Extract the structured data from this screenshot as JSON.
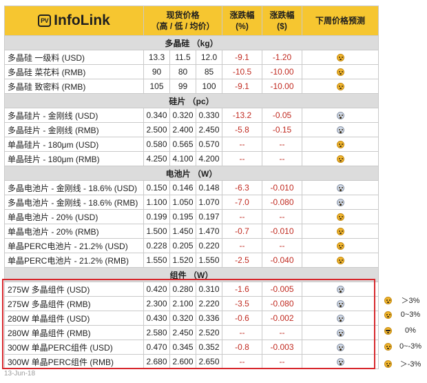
{
  "header": {
    "logo_badge": "PV",
    "logo_text": "InfoLink",
    "price_l1": "现货价格",
    "price_l2": "（高 / 低 / 均价）",
    "chg_pct_l1": "涨跌幅",
    "chg_pct_l2": "(%)",
    "chg_usd_l1": "涨跌幅",
    "chg_usd_l2": "($)",
    "forecast": "下周价格预测"
  },
  "sections": [
    {
      "title": "多晶硅 （kg）",
      "rows": [
        {
          "name": "多晶硅 一级料 (USD)",
          "high": "13.3",
          "low": "11.5",
          "avg": "12.0",
          "chg_pct": "-9.1",
          "chg_abs": "-1.20",
          "icon": "astonished-face-icon"
        },
        {
          "name": "多晶硅 菜花料 (RMB)",
          "high": "90",
          "low": "80",
          "avg": "85",
          "chg_pct": "-10.5",
          "chg_abs": "-10.00",
          "icon": "astonished-face-icon"
        },
        {
          "name": "多晶硅 致密料 (RMB)",
          "high": "105",
          "low": "99",
          "avg": "100",
          "chg_pct": "-9.1",
          "chg_abs": "-10.00",
          "icon": "astonished-face-icon"
        }
      ]
    },
    {
      "title": "硅片 （pc）",
      "rows": [
        {
          "name": "多晶硅片 - 金刚线 (USD)",
          "high": "0.340",
          "low": "0.320",
          "avg": "0.330",
          "chg_pct": "-13.2",
          "chg_abs": "-0.05",
          "icon": "screaming-face-icon"
        },
        {
          "name": "多晶硅片 - 金刚线 (RMB)",
          "high": "2.500",
          "low": "2.400",
          "avg": "2.450",
          "chg_pct": "-5.8",
          "chg_abs": "-0.15",
          "icon": "screaming-face-icon"
        },
        {
          "name": "单晶硅片 - 180μm (USD)",
          "high": "0.580",
          "low": "0.565",
          "avg": "0.570",
          "chg_pct": "--",
          "chg_abs": "--",
          "icon": "astonished-face-icon"
        },
        {
          "name": "单晶硅片 - 180μm (RMB)",
          "high": "4.250",
          "low": "4.100",
          "avg": "4.200",
          "chg_pct": "--",
          "chg_abs": "--",
          "icon": "astonished-face-icon"
        }
      ]
    },
    {
      "title": "电池片 （W）",
      "rows": [
        {
          "name": "多晶电池片 - 金刚线 - 18.6% (USD)",
          "high": "0.150",
          "low": "0.146",
          "avg": "0.148",
          "chg_pct": "-6.3",
          "chg_abs": "-0.010",
          "icon": "screaming-face-icon"
        },
        {
          "name": "多晶电池片 - 金刚线 - 18.6% (RMB)",
          "high": "1.100",
          "low": "1.050",
          "avg": "1.070",
          "chg_pct": "-7.0",
          "chg_abs": "-0.080",
          "icon": "screaming-face-icon"
        },
        {
          "name": "单晶电池片 - 20% (USD)",
          "high": "0.199",
          "low": "0.195",
          "avg": "0.197",
          "chg_pct": "--",
          "chg_abs": "--",
          "icon": "astonished-face-icon"
        },
        {
          "name": "单晶电池片 - 20% (RMB)",
          "high": "1.500",
          "low": "1.450",
          "avg": "1.470",
          "chg_pct": "-0.7",
          "chg_abs": "-0.010",
          "icon": "astonished-face-icon"
        },
        {
          "name": "单晶PERC电池片 - 21.2% (USD)",
          "high": "0.228",
          "low": "0.205",
          "avg": "0.220",
          "chg_pct": "--",
          "chg_abs": "--",
          "icon": "astonished-face-icon"
        },
        {
          "name": "单晶PERC电池片 - 21.2% (RMB)",
          "high": "1.550",
          "low": "1.520",
          "avg": "1.550",
          "chg_pct": "-2.5",
          "chg_abs": "-0.040",
          "icon": "astonished-face-icon"
        }
      ]
    },
    {
      "title": "组件 （W）",
      "rows": [
        {
          "name": "275W 多晶组件 (USD)",
          "high": "0.420",
          "low": "0.280",
          "avg": "0.310",
          "chg_pct": "-1.6",
          "chg_abs": "-0.005",
          "icon": "screaming-face-icon"
        },
        {
          "name": "275W 多晶组件 (RMB)",
          "high": "2.300",
          "low": "2.100",
          "avg": "2.220",
          "chg_pct": "-3.5",
          "chg_abs": "-0.080",
          "icon": "screaming-face-icon"
        },
        {
          "name": "280W 单晶组件 (USD)",
          "high": "0.430",
          "low": "0.320",
          "avg": "0.336",
          "chg_pct": "-0.6",
          "chg_abs": "-0.002",
          "icon": "screaming-face-icon"
        },
        {
          "name": "280W 单晶组件 (RMB)",
          "high": "2.580",
          "low": "2.450",
          "avg": "2.520",
          "chg_pct": "--",
          "chg_abs": "--",
          "icon": "screaming-face-icon"
        },
        {
          "name": "300W 单晶PERC组件 (USD)",
          "high": "0.470",
          "low": "0.345",
          "avg": "0.352",
          "chg_pct": "-0.8",
          "chg_abs": "-0.003",
          "icon": "screaming-face-icon"
        },
        {
          "name": "300W 单晶PERC组件 (RMB)",
          "high": "2.680",
          "low": "2.600",
          "avg": "2.650",
          "chg_pct": "--",
          "chg_abs": "--",
          "icon": "screaming-face-icon"
        }
      ]
    }
  ],
  "legend": [
    {
      "icon": "grimacing-face-icon",
      "text": "＞3%"
    },
    {
      "icon": "neutral-face-icon",
      "text": "0~3%"
    },
    {
      "icon": "sunglasses-face-icon",
      "text": "0%"
    },
    {
      "icon": "sad-face-icon",
      "text": "0~-3%"
    },
    {
      "icon": "astonished-face-icon",
      "text": "＞-3%"
    }
  ],
  "footer": {
    "date": "13-Jun-18"
  },
  "colors": {
    "header_bg": "#f6c630",
    "section_bg": "#dcdcdc",
    "negative": "#c0291f",
    "highlight_border": "#d7262b"
  }
}
